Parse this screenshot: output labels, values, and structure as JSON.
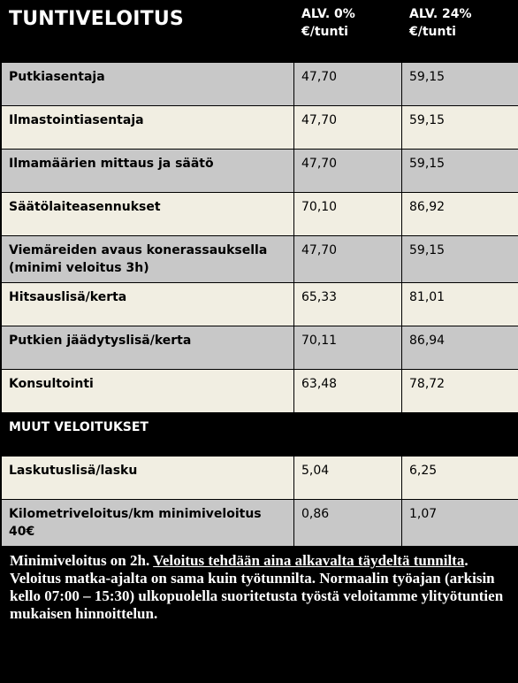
{
  "header": {
    "title": "TUNTIVELOITUS",
    "col_alv0_line1": "ALV. 0%",
    "col_alv0_line2": "€/tunti",
    "col_alv24_line1": "ALV. 24%",
    "col_alv24_line2": "€/tunti"
  },
  "rows": [
    {
      "label": "Putkiasentaja",
      "alv0": "47,70",
      "alv24": "59,15"
    },
    {
      "label": "Ilmastointiasentaja",
      "alv0": "47,70",
      "alv24": "59,15"
    },
    {
      "label": "Ilmamäärien mittaus ja säätö",
      "alv0": "47,70",
      "alv24": "59,15"
    },
    {
      "label": "Säätölaiteasennukset",
      "alv0": "70,10",
      "alv24": "86,92"
    },
    {
      "label": "Viemäreiden avaus konerassauksella",
      "label2": "(minimi veloitus 3h)",
      "alv0": "47,70",
      "alv24": "59,15"
    },
    {
      "label": "Hitsauslisä/kerta",
      "alv0": "65,33",
      "alv24": "81,01"
    },
    {
      "label": "Putkien jäädytyslisä/kerta",
      "alv0": "70,11",
      "alv24": "86,94"
    },
    {
      "label": "Konsultointi",
      "alv0": "63,48",
      "alv24": "78,72"
    }
  ],
  "other_section": {
    "title": "MUUT VELOITUKSET",
    "rows": [
      {
        "label": "Laskutuslisä/lasku",
        "alv0": "5,04",
        "alv24": "6,25"
      },
      {
        "label": "Kilometriveloitus/km minimiveloitus",
        "label2": "40€",
        "alv0": "0,86",
        "alv24": "1,07"
      }
    ]
  },
  "note": {
    "part1": "Minimiveloitus on 2h. ",
    "underlined": "Veloitus tehdään aina  alkavalta täydeltä tunnilta",
    "part2": ". Veloitus matka-ajalta on sama kuin työtunnilta. Normaalin työajan (arkisin kello 07:00 – 15:30) ulkopuolella suoritetusta työstä veloitamme ylityötuntien mukaisen hinnoittelun."
  },
  "colors": {
    "header_bg": "#000000",
    "row_gray": "#c8c8c8",
    "row_cream": "#f1eee2"
  }
}
